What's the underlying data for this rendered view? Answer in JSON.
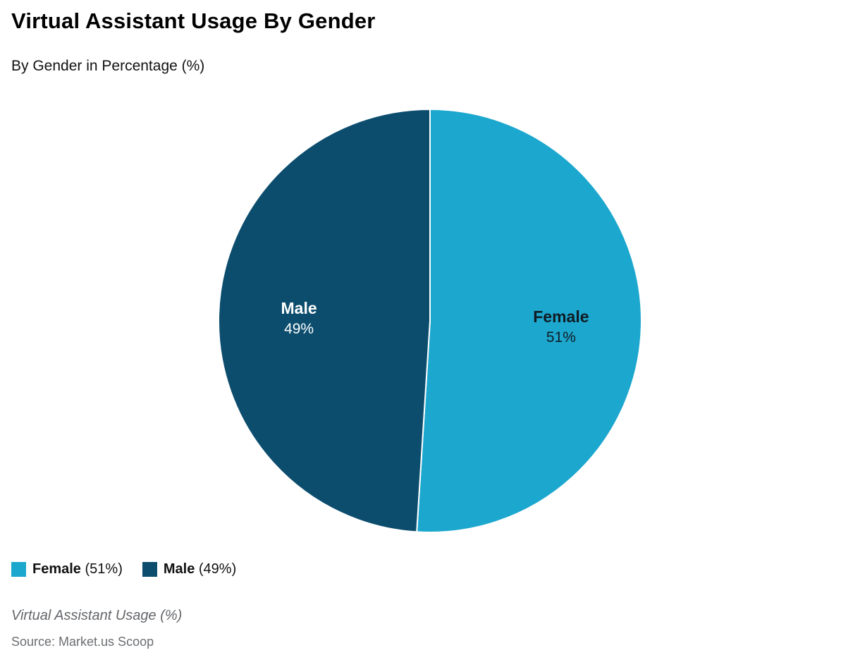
{
  "header": {
    "title": "Virtual Assistant Usage By Gender",
    "subtitle": "By Gender in Percentage (%)"
  },
  "chart_data": {
    "type": "pie",
    "title": "Virtual Assistant Usage By Gender",
    "slices": [
      {
        "label": "Female",
        "value": 51,
        "color": "#1CA7CE",
        "label_color": "#101c24"
      },
      {
        "label": "Male",
        "value": 49,
        "color": "#0C4D6E",
        "label_color": "#ffffff"
      }
    ],
    "start_angle_deg": -90,
    "direction": "clockwise",
    "value_suffix": "%",
    "legend_position": "bottom-left"
  },
  "legend": {
    "items": [
      {
        "label": "Female",
        "value_text": "(51%)",
        "color": "#1CA7CE"
      },
      {
        "label": "Male",
        "value_text": "(49%)",
        "color": "#0C4D6E"
      }
    ]
  },
  "footer": {
    "caption": "Virtual Assistant Usage (%)",
    "source": "Source: Market.us Scoop"
  }
}
